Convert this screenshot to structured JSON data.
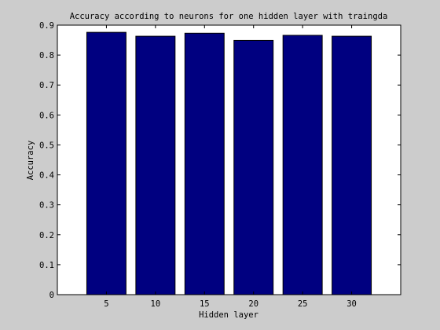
{
  "chart_data": {
    "type": "bar",
    "title": "Accuracy according to neurons for one hidden layer with traingda",
    "xlabel": "Hidden layer",
    "ylabel": "Accuracy",
    "categories": [
      "5",
      "10",
      "15",
      "20",
      "25",
      "30"
    ],
    "series": [
      {
        "values": [
          0.876,
          0.863,
          0.873,
          0.849,
          0.866,
          0.863
        ],
        "color": "#000080"
      }
    ],
    "ylim": [
      0,
      0.9
    ],
    "yticks": [
      "0",
      "0.1",
      "0.2",
      "0.3",
      "0.4",
      "0.5",
      "0.6",
      "0.7",
      "0.8",
      "0.9"
    ],
    "grid": false,
    "legend": "none"
  },
  "colors": {
    "figure_background": "#cccccc",
    "axes_background": "#ffffff",
    "bar_fill": "#000080",
    "bar_edge": "#000000"
  }
}
